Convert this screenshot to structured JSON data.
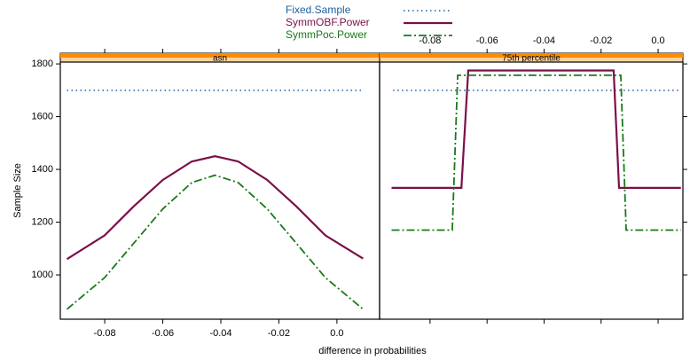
{
  "chart_data": {
    "type": "line",
    "xlabel": "difference in probabilities",
    "ylabel": "Sample Size",
    "ylim": [
      832,
      1807
    ],
    "yticks": [
      1000,
      1200,
      1400,
      1600,
      1800
    ],
    "series": [
      {
        "name": "Fixed.Sample",
        "color": "#1f5fa0",
        "linestyle": "dotted"
      },
      {
        "name": "SymmOBF.Power",
        "color": "#7b1048",
        "linestyle": "solid"
      },
      {
        "name": "SymmPoc.Power",
        "color": "#1a7a1a",
        "linestyle": "dashdot"
      }
    ],
    "panels": [
      {
        "strip": "asn",
        "xlim": [
          -0.0953,
          0.0147
        ],
        "xtick_side": "bottom",
        "xticks": [
          -0.08,
          -0.06,
          -0.04,
          -0.02,
          {
            "value": 0,
            "label": "0.0"
          }
        ],
        "series": [
          {
            "x": [
              -0.093,
              0.009
            ],
            "values": [
              1700,
              1700
            ]
          },
          {
            "x": [
              -0.093,
              -0.08,
              -0.07,
              -0.06,
              -0.05,
              -0.042,
              -0.034,
              -0.024,
              -0.014,
              -0.004,
              0.009
            ],
            "values": [
              1060,
              1150,
              1260,
              1360,
              1430,
              1450,
              1430,
              1360,
              1260,
              1150,
              1062
            ]
          },
          {
            "x": [
              -0.093,
              -0.08,
              -0.07,
              -0.06,
              -0.05,
              -0.042,
              -0.034,
              -0.024,
              -0.014,
              -0.004,
              0.009
            ],
            "values": [
              870,
              990,
              1120,
              1250,
              1350,
              1378,
              1350,
              1250,
              1120,
              990,
              870
            ]
          }
        ]
      },
      {
        "strip": "75th percentile",
        "xlim": [
          -0.0977,
          0.0087
        ],
        "xtick_side": "top",
        "xticks": [
          -0.08,
          -0.06,
          -0.04,
          -0.02,
          {
            "value": 0,
            "label": "0.0"
          }
        ],
        "series": [
          {
            "x": [
              -0.093,
              0.008
            ],
            "values": [
              1700,
              1700
            ]
          },
          {
            "x": [
              -0.0935,
              -0.069,
              -0.0666,
              -0.0156,
              -0.0137,
              0.008
            ],
            "values": [
              1330,
              1330,
              1775,
              1775,
              1330,
              1330
            ]
          },
          {
            "x": [
              -0.0935,
              -0.0722,
              -0.0703,
              -0.0131,
              -0.0112,
              0.008
            ],
            "values": [
              1170,
              1170,
              1757,
              1757,
              1170,
              1170
            ]
          }
        ]
      }
    ]
  }
}
